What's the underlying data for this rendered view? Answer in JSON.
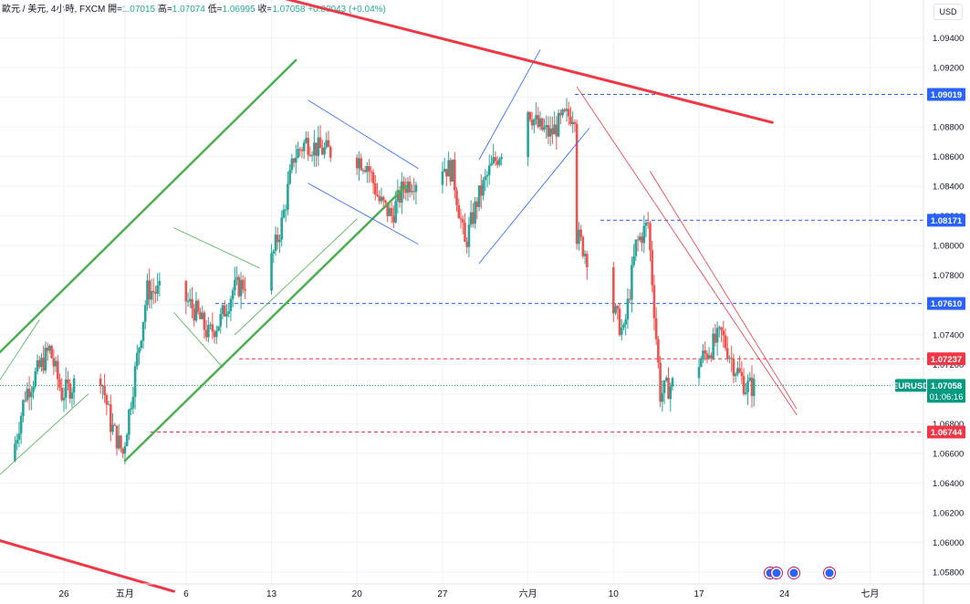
{
  "header": {
    "symbol_line": "歐元 / 美元, 4小時, FXCM",
    "open_label": "開=",
    "open_value": "1.07015",
    "high_label": "高=",
    "high_value": "1.07074",
    "low_label": "低=",
    "low_value": "1.06995",
    "close_label": "收=",
    "close_value": "1.07058",
    "change_value": "+0.00043 (+0.04%)"
  },
  "currency_button": "USD",
  "colors": {
    "bull": "#26a69a",
    "bear": "#ef5350",
    "green_line": "#4caf50",
    "blue_line": "#2962ff",
    "red_line": "#f23645",
    "tag_blue": "#2962ff",
    "tag_red": "#f23645",
    "tag_green": "#089981"
  },
  "price_axis": {
    "ticks": [
      "1.09400",
      "1.09200",
      "1.09000",
      "1.08800",
      "1.08600",
      "1.08400",
      "1.08200",
      "1.08000",
      "1.07800",
      "1.07600",
      "1.07400",
      "1.07200",
      "1.07000",
      "1.06800",
      "1.06600",
      "1.06400",
      "1.06200",
      "1.06000",
      "1.05800"
    ],
    "tick_values": [
      1.094,
      1.092,
      1.09,
      1.088,
      1.086,
      1.084,
      1.082,
      1.08,
      1.078,
      1.076,
      1.074,
      1.072,
      1.07,
      1.068,
      1.066,
      1.064,
      1.062,
      1.06,
      1.058
    ]
  },
  "time_axis": {
    "labels": [
      "26",
      "五月",
      "6",
      "13",
      "20",
      "27",
      "六月",
      "10",
      "17",
      "24",
      "七月"
    ]
  },
  "chart_data": {
    "type": "candlestick",
    "symbol": "EURUSD",
    "interval": "4小時",
    "current_price": "1.07058",
    "countdown": "01:06:16",
    "level_tags": [
      {
        "label": "1.09019",
        "price": 1.09019,
        "color": "#2962ff",
        "style": "dashed"
      },
      {
        "label": "1.08171",
        "price": 1.08171,
        "color": "#2962ff",
        "style": "dashed"
      },
      {
        "label": "1.07610",
        "price": 1.0761,
        "color": "#2962ff",
        "style": "dashed"
      },
      {
        "label": "1.07237",
        "price": 1.07237,
        "color": "#f23645",
        "style": "dashed"
      },
      {
        "label": "1.06744",
        "price": 1.06744,
        "color": "#f23645",
        "style": "dashed"
      }
    ],
    "price_range": [
      1.0572,
      1.0952
    ],
    "anchors": [
      [
        "2024-04-21",
        1.0655
      ],
      [
        "2024-04-22",
        1.066
      ],
      [
        "2024-04-23",
        1.07
      ],
      [
        "2024-04-25",
        1.073
      ],
      [
        "2024-04-26",
        1.07
      ],
      [
        "2024-04-29",
        1.072
      ],
      [
        "2024-04-30",
        1.068
      ],
      [
        "2024-05-01",
        1.066
      ],
      [
        "2024-05-02",
        1.0715
      ],
      [
        "2024-05-03",
        1.077
      ],
      [
        "2024-05-06",
        1.0765
      ],
      [
        "2024-05-07",
        1.0755
      ],
      [
        "2024-05-08",
        1.074
      ],
      [
        "2024-05-09",
        1.075
      ],
      [
        "2024-05-10",
        1.077
      ],
      [
        "2024-05-13",
        1.0785
      ],
      [
        "2024-05-14",
        1.0815
      ],
      [
        "2024-05-15",
        1.086
      ],
      [
        "2024-05-16",
        1.087
      ],
      [
        "2024-05-17",
        1.0865
      ],
      [
        "2024-05-20",
        1.086
      ],
      [
        "2024-05-21",
        1.0855
      ],
      [
        "2024-05-22",
        1.083
      ],
      [
        "2024-05-23",
        1.082
      ],
      [
        "2024-05-24",
        1.084
      ],
      [
        "2024-05-27",
        1.0855
      ],
      [
        "2024-05-28",
        1.085
      ],
      [
        "2024-05-29",
        1.08
      ],
      [
        "2024-05-30",
        1.083
      ],
      [
        "2024-05-31",
        1.085
      ],
      [
        "2024-06-03",
        1.0895
      ],
      [
        "2024-06-04",
        1.088
      ],
      [
        "2024-06-05",
        1.0875
      ],
      [
        "2024-06-06",
        1.0885
      ],
      [
        "2024-06-07",
        1.089
      ],
      [
        "2024-06-07",
        1.081
      ],
      [
        "2024-06-10",
        1.076
      ],
      [
        "2024-06-11",
        1.074
      ],
      [
        "2024-06-12",
        1.08
      ],
      [
        "2024-06-13",
        1.0815
      ],
      [
        "2024-06-14",
        1.07
      ],
      [
        "2024-06-17",
        1.072
      ],
      [
        "2024-06-18",
        1.073
      ],
      [
        "2024-06-19",
        1.074
      ],
      [
        "2024-06-20",
        1.072
      ],
      [
        "2024-06-21",
        1.0705
      ]
    ],
    "drawings": [
      {
        "kind": "trendline",
        "color": "#4caf50",
        "width": 2.5,
        "from": [
          "2024-04-20",
          1.0722
        ],
        "to": [
          "2024-05-15",
          1.0925
        ]
      },
      {
        "kind": "trendline",
        "color": "#4caf50",
        "width": 2.5,
        "from": [
          "2024-05-01",
          1.0655
        ],
        "to": [
          "2024-05-24",
          1.084
        ]
      },
      {
        "kind": "trendline",
        "color": "#4caf50",
        "width": 0.8,
        "from": [
          "2024-04-20",
          1.064
        ],
        "to": [
          "2024-04-28",
          1.07
        ]
      },
      {
        "kind": "trendline",
        "color": "#4caf50",
        "width": 0.8,
        "from": [
          "2024-04-20",
          1.07
        ],
        "to": [
          "2024-04-24",
          1.075
        ]
      },
      {
        "kind": "trendline",
        "color": "#4caf50",
        "width": 0.8,
        "from": [
          "2024-05-05",
          1.0812
        ],
        "to": [
          "2024-05-12",
          1.0785
        ]
      },
      {
        "kind": "trendline",
        "color": "#4caf50",
        "width": 0.8,
        "from": [
          "2024-05-05",
          1.0755
        ],
        "to": [
          "2024-05-09",
          1.0718
        ]
      },
      {
        "kind": "trendline",
        "color": "#4caf50",
        "width": 0.8,
        "from": [
          "2024-05-10",
          1.074
        ],
        "to": [
          "2024-05-20",
          1.0818
        ]
      },
      {
        "kind": "trendline",
        "color": "#2962ff",
        "width": 0.8,
        "from": [
          "2024-05-16",
          1.0898
        ],
        "to": [
          "2024-05-25",
          1.0852
        ]
      },
      {
        "kind": "trendline",
        "color": "#2962ff",
        "width": 0.8,
        "from": [
          "2024-05-16",
          1.0842
        ],
        "to": [
          "2024-05-25",
          1.0801
        ]
      },
      {
        "kind": "trendline",
        "color": "#2962ff",
        "width": 0.8,
        "from": [
          "2024-05-30",
          1.0858
        ],
        "to": [
          "2024-06-04",
          1.0932
        ]
      },
      {
        "kind": "trendline",
        "color": "#2962ff",
        "width": 0.8,
        "from": [
          "2024-05-30",
          1.0788
        ],
        "to": [
          "2024-06-08",
          1.0879
        ]
      },
      {
        "kind": "trendline",
        "color": "#f23645",
        "width": 3,
        "from": [
          "2024-05-10",
          1.0975
        ],
        "to": [
          "2024-06-23",
          1.0883
        ]
      },
      {
        "kind": "trendline",
        "color": "#f23645",
        "width": 3,
        "from": [
          "2024-04-20",
          1.0603
        ],
        "to": [
          "2024-05-05",
          1.0567
        ]
      },
      {
        "kind": "trendline",
        "color": "#f23645",
        "width": 0.8,
        "from": [
          "2024-06-07",
          1.0907
        ],
        "to": [
          "2024-06-25",
          1.0686
        ]
      },
      {
        "kind": "trendline",
        "color": "#f23645",
        "width": 0.8,
        "from": [
          "2024-06-13",
          1.085
        ],
        "to": [
          "2024-06-25",
          1.069
        ]
      }
    ]
  }
}
